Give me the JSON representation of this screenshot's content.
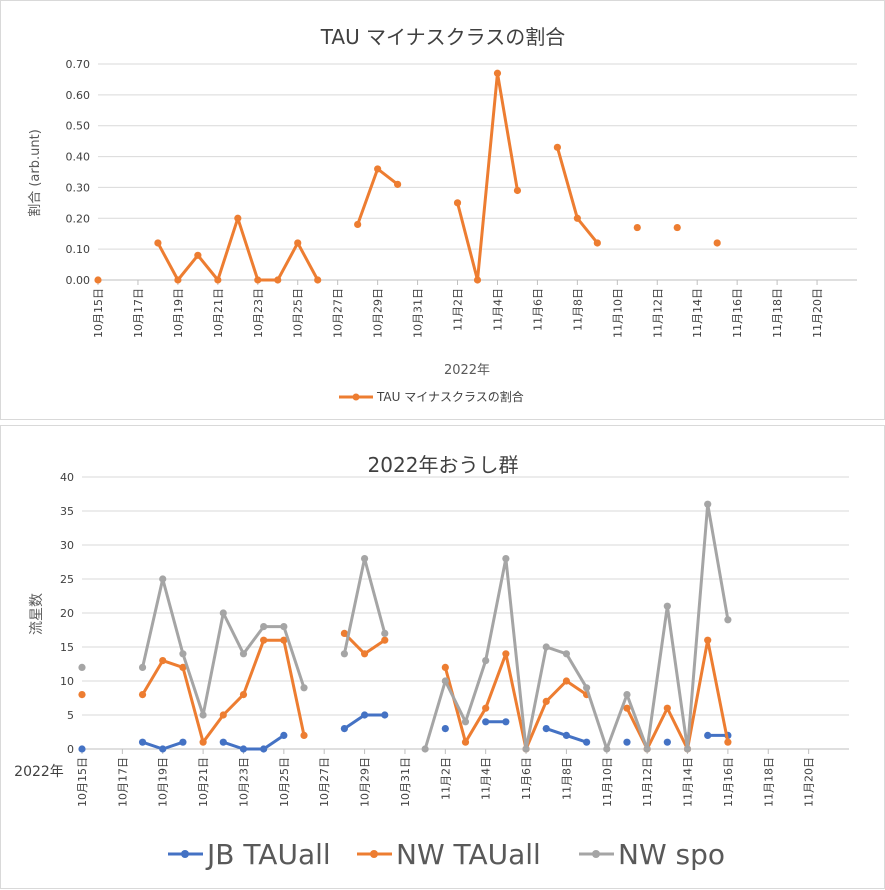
{
  "chart_data": [
    {
      "type": "line",
      "title": "TAU マイナスクラスの割合",
      "xlabel": "2022年",
      "ylabel": "割合 (arb.unt)",
      "ylim": [
        0,
        0.7
      ],
      "yticks": [
        "0.00",
        "0.10",
        "0.20",
        "0.30",
        "0.40",
        "0.50",
        "0.60",
        "0.70"
      ],
      "xticks": [
        "10月15日",
        "10月17日",
        "10月19日",
        "10月21日",
        "10月23日",
        "10月25日",
        "10月27日",
        "10月29日",
        "10月31日",
        "11月2日",
        "11月4日",
        "11月6日",
        "11月8日",
        "11月10日",
        "11月12日",
        "11月14日",
        "11月16日",
        "11月18日",
        "11月20日"
      ],
      "x_start": "10月15日",
      "n_days": 38,
      "series": [
        {
          "name": "TAU マイナスクラスの割合",
          "color": "#ED7D31",
          "values": [
            0.0,
            null,
            null,
            0.12,
            0.0,
            0.08,
            0.0,
            0.2,
            0.0,
            0.0,
            0.12,
            0.0,
            null,
            0.18,
            0.36,
            0.31,
            null,
            null,
            0.25,
            0.0,
            0.67,
            0.29,
            null,
            0.43,
            0.2,
            0.12,
            null,
            0.17,
            null,
            0.17,
            null,
            0.12
          ]
        }
      ]
    },
    {
      "type": "line",
      "title": "2022年おうし群",
      "xlabel": "2022年",
      "ylabel": "流星数",
      "ylim": [
        0,
        40
      ],
      "yticks": [
        "0",
        "5",
        "10",
        "15",
        "20",
        "25",
        "30",
        "35",
        "40"
      ],
      "xticks": [
        "10月15日",
        "10月17日",
        "10月19日",
        "10月21日",
        "10月23日",
        "10月25日",
        "10月27日",
        "10月29日",
        "10月31日",
        "11月2日",
        "11月4日",
        "11月6日",
        "11月8日",
        "11月10日",
        "11月12日",
        "11月14日",
        "11月16日",
        "11月18日",
        "11月20日"
      ],
      "x_start": "10月15日",
      "n_days": 38,
      "series": [
        {
          "name": "JB TAUall",
          "color": "#4472C4",
          "values": [
            0,
            null,
            null,
            1,
            0,
            1,
            null,
            1,
            0,
            0,
            2,
            null,
            null,
            3,
            5,
            5,
            null,
            null,
            3,
            null,
            4,
            4,
            null,
            3,
            2,
            1,
            null,
            1,
            null,
            1,
            null,
            2,
            2
          ]
        },
        {
          "name": "NW TAUall",
          "color": "#ED7D31",
          "values": [
            8,
            null,
            null,
            8,
            13,
            12,
            1,
            5,
            8,
            16,
            16,
            2,
            null,
            17,
            14,
            16,
            null,
            null,
            12,
            1,
            6,
            14,
            0,
            7,
            10,
            8,
            null,
            6,
            0,
            6,
            0,
            16,
            1
          ]
        },
        {
          "name": "NW spo",
          "color": "#A5A5A5",
          "values": [
            12,
            null,
            null,
            12,
            25,
            14,
            5,
            20,
            14,
            18,
            18,
            9,
            null,
            14,
            28,
            17,
            null,
            0,
            10,
            4,
            13,
            28,
            0,
            15,
            14,
            9,
            0,
            8,
            0,
            21,
            0,
            36,
            19
          ]
        }
      ]
    }
  ]
}
